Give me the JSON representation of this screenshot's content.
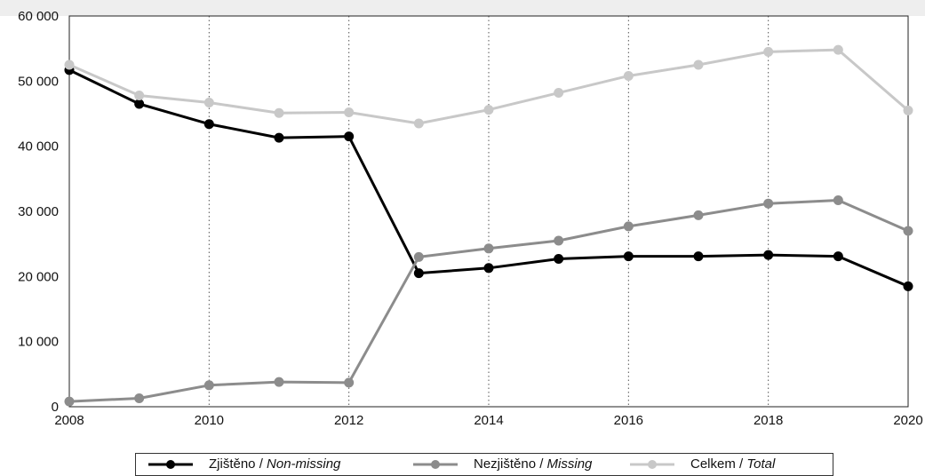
{
  "chart_data": {
    "type": "line",
    "title": "",
    "xlabel": "",
    "ylabel": "",
    "x": [
      2008,
      2009,
      2010,
      2011,
      2012,
      2013,
      2014,
      2015,
      2016,
      2017,
      2018,
      2019,
      2020
    ],
    "xticks": [
      "2008",
      "2010",
      "2012",
      "2014",
      "2016",
      "2018",
      "2020"
    ],
    "yticks": [
      "0",
      "10 000",
      "20 000",
      "30 000",
      "40 000",
      "50 000",
      "60 000"
    ],
    "ylim": [
      0,
      60000
    ],
    "xlim": [
      2008,
      2020
    ],
    "vertical_gridlines": "dotted at even years",
    "legend_position": "bottom",
    "series": [
      {
        "name": "Zjištěno / Non-missing",
        "name_main": "Zjištěno / ",
        "name_italic": "Non-missing",
        "color": "#000000",
        "values": [
          51700,
          46500,
          43400,
          41300,
          41500,
          20500,
          21300,
          22700,
          23100,
          23100,
          23300,
          23100,
          18500
        ]
      },
      {
        "name": "Nezjištěno / Missing",
        "name_main": "Nezjištěno / ",
        "name_italic": "Missing",
        "color": "#8c8c8c",
        "values": [
          800,
          1300,
          3300,
          3800,
          3700,
          23000,
          24300,
          25500,
          27700,
          29400,
          31200,
          31700,
          27000
        ]
      },
      {
        "name": "Celkem / Total",
        "name_main": "Celkem / ",
        "name_italic": "Total",
        "color": "#c8c8c8",
        "values": [
          52500,
          47800,
          46700,
          45100,
          45200,
          43500,
          45600,
          48200,
          50800,
          52500,
          54500,
          54800,
          45500
        ]
      }
    ]
  }
}
